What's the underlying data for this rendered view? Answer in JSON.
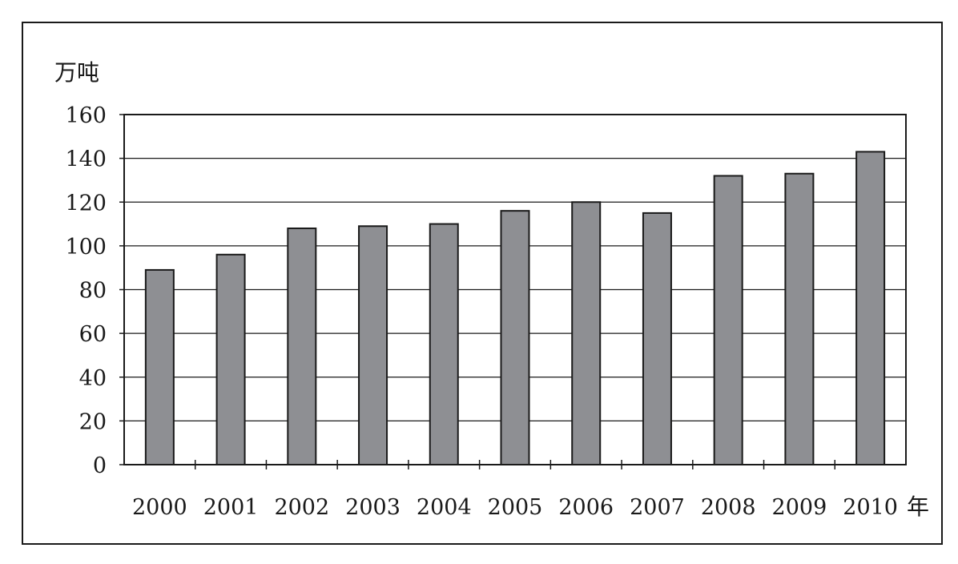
{
  "chart_data": {
    "type": "bar",
    "title": "",
    "ylabel": "万吨",
    "xlabel": "年",
    "categories": [
      "2000",
      "2001",
      "2002",
      "2003",
      "2004",
      "2005",
      "2006",
      "2007",
      "2008",
      "2009",
      "2010"
    ],
    "values": [
      89,
      96,
      108,
      109,
      110,
      116,
      120,
      115,
      132,
      133,
      143
    ],
    "ylim": [
      0,
      160
    ],
    "yticks": [
      "0",
      "20",
      "40",
      "60",
      "80",
      "100",
      "120",
      "140",
      "160"
    ],
    "grid": "horizontal",
    "legend": "none",
    "colors": {
      "bar_fill": "#8e8f93",
      "bar_stroke": "#1a1a1a",
      "grid": "#1a1a1a",
      "frame": "#1a1a1a",
      "background": "#ffffff"
    }
  }
}
